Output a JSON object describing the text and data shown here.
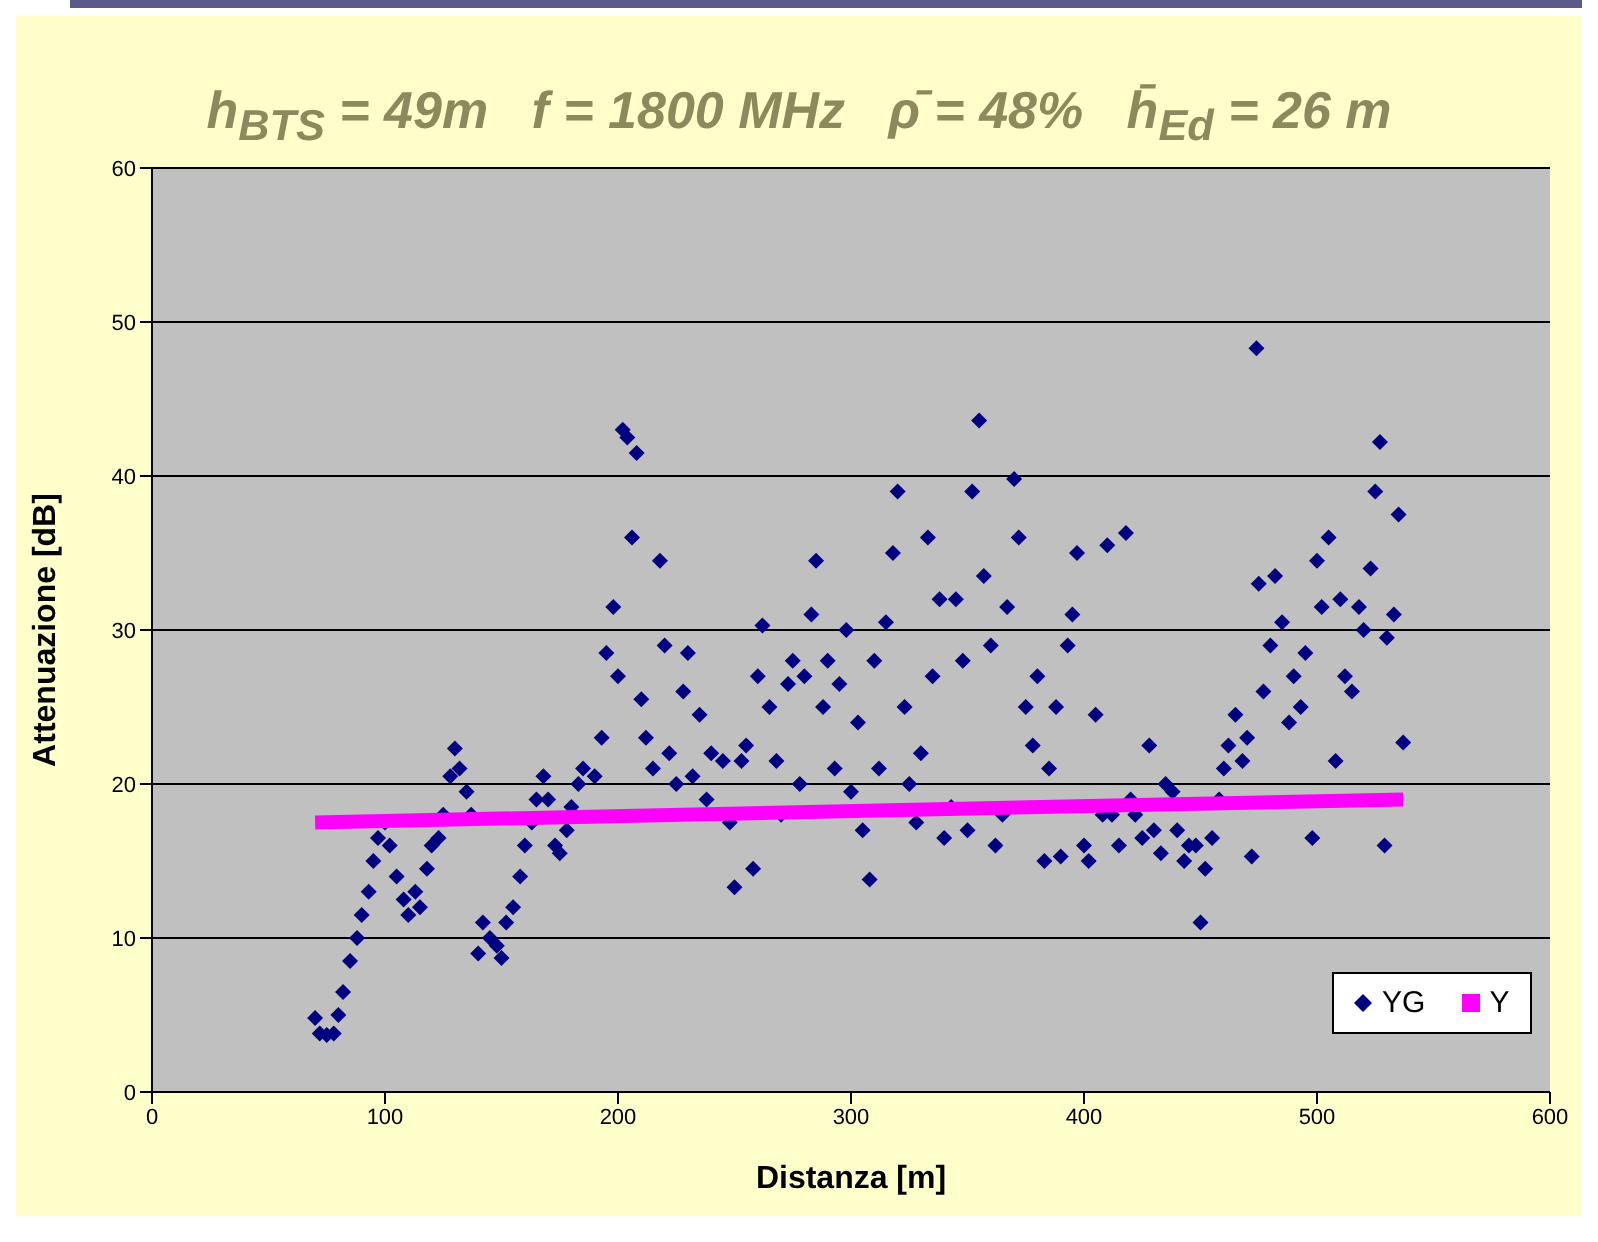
{
  "chart_data": {
    "type": "scatter",
    "title": "h$_{BTS}$ = 49m   f = 1800 MHz   ρ̄ = 48%   h̄$_{Ed}$ = 26 m",
    "xlabel": "Distanza [m]",
    "ylabel": "Attenuazione [dB]",
    "xlim": [
      0,
      600
    ],
    "xticks": [
      0,
      100,
      200,
      300,
      400,
      500,
      600
    ],
    "ylim": [
      0,
      60
    ],
    "yticks": [
      0,
      10,
      20,
      30,
      40,
      50,
      60
    ],
    "grid": "y",
    "legend": "bottom right",
    "series": [
      {
        "name": "YG",
        "type": "scatter",
        "color": "#000080",
        "marker": "diamond",
        "x": [
          70,
          72,
          75,
          78,
          80,
          82,
          85,
          88,
          90,
          93,
          95,
          97,
          100,
          102,
          105,
          108,
          110,
          113,
          115,
          118,
          120,
          123,
          125,
          128,
          130,
          132,
          135,
          137,
          140,
          142,
          145,
          148,
          150,
          152,
          155,
          158,
          160,
          163,
          165,
          168,
          170,
          173,
          175,
          178,
          180,
          183,
          185,
          190,
          193,
          195,
          198,
          200,
          202,
          204,
          206,
          208,
          210,
          212,
          215,
          218,
          220,
          222,
          225,
          228,
          230,
          232,
          235,
          238,
          240,
          243,
          245,
          248,
          250,
          253,
          255,
          258,
          260,
          262,
          265,
          268,
          270,
          273,
          275,
          278,
          280,
          283,
          285,
          288,
          290,
          293,
          295,
          298,
          300,
          303,
          305,
          308,
          310,
          312,
          315,
          318,
          320,
          323,
          325,
          328,
          330,
          333,
          335,
          338,
          340,
          343,
          345,
          348,
          350,
          352,
          355,
          357,
          360,
          362,
          365,
          367,
          370,
          372,
          375,
          378,
          380,
          383,
          385,
          388,
          390,
          393,
          395,
          397,
          400,
          402,
          405,
          408,
          410,
          412,
          415,
          418,
          420,
          422,
          425,
          428,
          430,
          433,
          435,
          438,
          440,
          443,
          445,
          448,
          450,
          452,
          455,
          458,
          460,
          462,
          465,
          468,
          470,
          472,
          474,
          475,
          477,
          480,
          482,
          485,
          488,
          490,
          493,
          495,
          498,
          500,
          502,
          505,
          508,
          510,
          512,
          515,
          518,
          520,
          523,
          525,
          527,
          529,
          530,
          533,
          535,
          537
        ],
        "values": [
          4.8,
          3.8,
          3.7,
          3.8,
          5,
          6.5,
          8.5,
          10,
          11.5,
          13,
          15,
          16.5,
          17.5,
          16,
          14,
          12.5,
          11.5,
          13,
          12,
          14.5,
          16,
          16.5,
          18,
          20.5,
          22.3,
          21,
          19.5,
          18,
          9,
          11,
          10,
          9.5,
          8.7,
          11,
          12,
          14,
          16,
          17.5,
          19,
          20.5,
          19,
          16,
          15.5,
          17,
          18.5,
          20,
          21,
          20.5,
          23,
          28.5,
          31.5,
          27,
          43,
          42.5,
          36,
          41.5,
          25.5,
          23,
          21,
          34.5,
          29,
          22,
          20,
          26,
          28.5,
          20.5,
          24.5,
          19,
          22,
          null,
          21.5,
          17.5,
          13.3,
          21.5,
          22.5,
          14.5,
          27,
          30.3,
          25,
          21.5,
          18,
          26.5,
          28,
          20,
          27,
          31,
          34.5,
          25,
          28,
          21,
          26.5,
          30,
          19.5,
          24,
          17,
          13.8,
          28,
          21,
          30.5,
          35,
          39,
          25,
          20,
          17.5,
          22,
          36,
          27,
          32,
          16.5,
          18.5,
          32,
          28,
          17,
          39,
          43.6,
          33.5,
          29,
          16,
          18,
          31.5,
          39.8,
          36,
          25,
          22.5,
          27,
          15,
          21,
          25,
          15.3,
          29,
          31,
          35,
          16,
          15,
          24.5,
          18,
          35.5,
          18,
          16,
          36.3,
          19,
          18,
          16.5,
          22.5,
          17,
          15.5,
          20,
          19.5,
          17,
          15,
          16,
          16,
          11,
          14.5,
          16.5,
          19,
          21,
          22.5,
          24.5,
          21.5,
          23,
          15.3,
          48.3,
          33,
          26,
          29,
          33.5,
          30.5,
          24,
          27,
          25,
          28.5,
          16.5,
          34.5,
          31.5,
          36,
          21.5,
          32,
          27,
          26,
          31.5,
          30,
          34,
          39,
          42.2,
          16,
          29.5,
          31,
          37.5,
          22.7
        ]
      },
      {
        "name": "Y",
        "type": "line",
        "color": "#ff00ff",
        "marker": "none",
        "line_style": "solid",
        "x": [
          70,
          537
        ],
        "values": [
          17.5,
          19.0
        ]
      }
    ]
  }
}
